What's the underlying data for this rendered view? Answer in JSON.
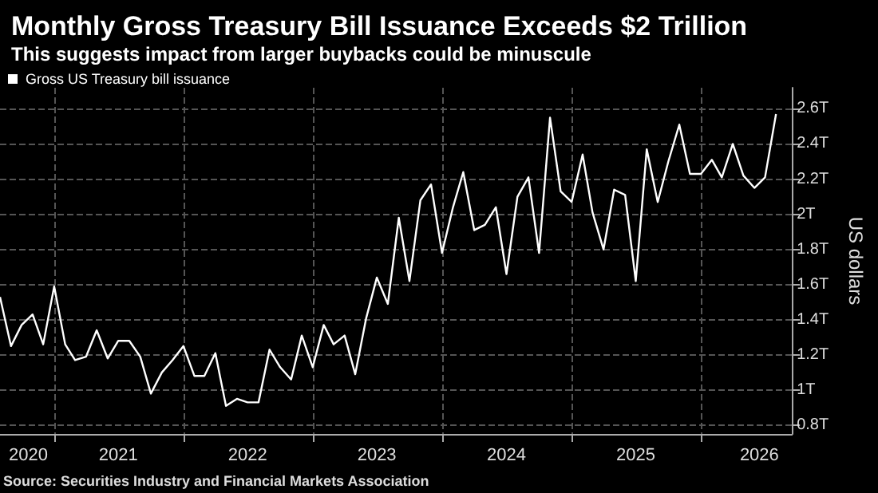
{
  "chart_data": {
    "type": "line",
    "title": "Monthly Gross Treasury Bill Issuance Exceeds $2 Trillion",
    "subtitle": "This suggests impact from larger buybacks could be minuscule",
    "ylabel": "US dollars",
    "annotations": [
      "Source: Securities Industry and Financial Markets Association"
    ],
    "x": [
      "2020-08",
      "2020-09",
      "2020-10",
      "2020-11",
      "2020-12",
      "2021-01",
      "2021-02",
      "2021-03",
      "2021-04",
      "2021-05",
      "2021-06",
      "2021-07",
      "2021-08",
      "2021-09",
      "2021-10",
      "2021-11",
      "2021-12",
      "2022-01",
      "2022-02",
      "2022-03",
      "2022-04",
      "2022-05",
      "2022-06",
      "2022-07",
      "2022-08",
      "2022-09",
      "2022-10",
      "2022-11",
      "2022-12",
      "2023-01",
      "2023-02",
      "2023-03",
      "2023-04",
      "2023-05",
      "2023-06",
      "2023-07",
      "2023-08",
      "2023-09",
      "2023-10",
      "2023-11",
      "2023-12",
      "2024-01",
      "2024-02",
      "2024-03",
      "2024-04",
      "2024-05",
      "2024-06",
      "2024-07",
      "2024-08",
      "2024-09",
      "2024-10",
      "2024-11",
      "2024-12",
      "2025-01",
      "2025-02",
      "2025-03",
      "2025-04",
      "2025-05",
      "2025-06",
      "2025-07",
      "2025-08",
      "2025-09",
      "2025-10",
      "2025-11",
      "2025-12",
      "2026-01",
      "2026-02",
      "2026-03",
      "2026-04",
      "2026-05",
      "2026-06",
      "2026-07",
      "2026-08"
    ],
    "series": [
      {
        "name": "Gross US Treasury bill issuance",
        "color": "#ffffff",
        "values": [
          1.53,
          1.25,
          1.37,
          1.43,
          1.26,
          1.59,
          1.26,
          1.17,
          1.19,
          1.34,
          1.18,
          1.28,
          1.28,
          1.19,
          0.98,
          1.1,
          1.17,
          1.25,
          1.08,
          1.08,
          1.21,
          0.91,
          0.95,
          0.93,
          0.93,
          1.23,
          1.13,
          1.06,
          1.31,
          1.13,
          1.37,
          1.26,
          1.31,
          1.09,
          1.41,
          1.64,
          1.49,
          1.98,
          1.62,
          2.08,
          2.17,
          1.78,
          2.04,
          2.24,
          1.91,
          1.94,
          2.04,
          1.66,
          2.1,
          2.21,
          1.78,
          2.55,
          2.13,
          2.07,
          2.34,
          2.01,
          1.8,
          2.14,
          2.11,
          1.62,
          2.37,
          2.07,
          2.3,
          2.51,
          2.23,
          2.23,
          2.31,
          2.21,
          2.4,
          2.22,
          2.15,
          2.21,
          2.57
        ]
      }
    ],
    "xlim": [
      "2020-08",
      "2026-09-15"
    ],
    "xticks": [
      {
        "value": "2020-10-20",
        "label": "2020"
      },
      {
        "value": "2021-01",
        "label": null
      },
      {
        "value": "2021-07",
        "label": "2021"
      },
      {
        "value": "2022-01",
        "label": null
      },
      {
        "value": "2022-07",
        "label": "2022"
      },
      {
        "value": "2023-01",
        "label": null
      },
      {
        "value": "2023-07",
        "label": "2023"
      },
      {
        "value": "2024-01",
        "label": null
      },
      {
        "value": "2024-07",
        "label": "2024"
      },
      {
        "value": "2025-01",
        "label": null
      },
      {
        "value": "2025-07",
        "label": "2025"
      },
      {
        "value": "2026-01",
        "label": null
      },
      {
        "value": "2026-06-15",
        "label": "2026"
      }
    ],
    "ylim": [
      0.75,
      2.72
    ],
    "yticks": [
      {
        "value": 0.8,
        "label": "0.8T"
      },
      {
        "value": 1,
        "label": "1T"
      },
      {
        "value": 1.2,
        "label": "1.2T"
      },
      {
        "value": 1.4,
        "label": "1.4T"
      },
      {
        "value": 1.6,
        "label": "1.6T"
      },
      {
        "value": 1.8,
        "label": "1.8T"
      },
      {
        "value": 2,
        "label": "2T"
      },
      {
        "value": 2.2,
        "label": "2.2T"
      },
      {
        "value": 2.4,
        "label": "2.4T"
      },
      {
        "value": 2.6,
        "label": "2.6T"
      }
    ],
    "grid": true,
    "legend": "top left",
    "marker": "none",
    "line_style": "solid"
  }
}
